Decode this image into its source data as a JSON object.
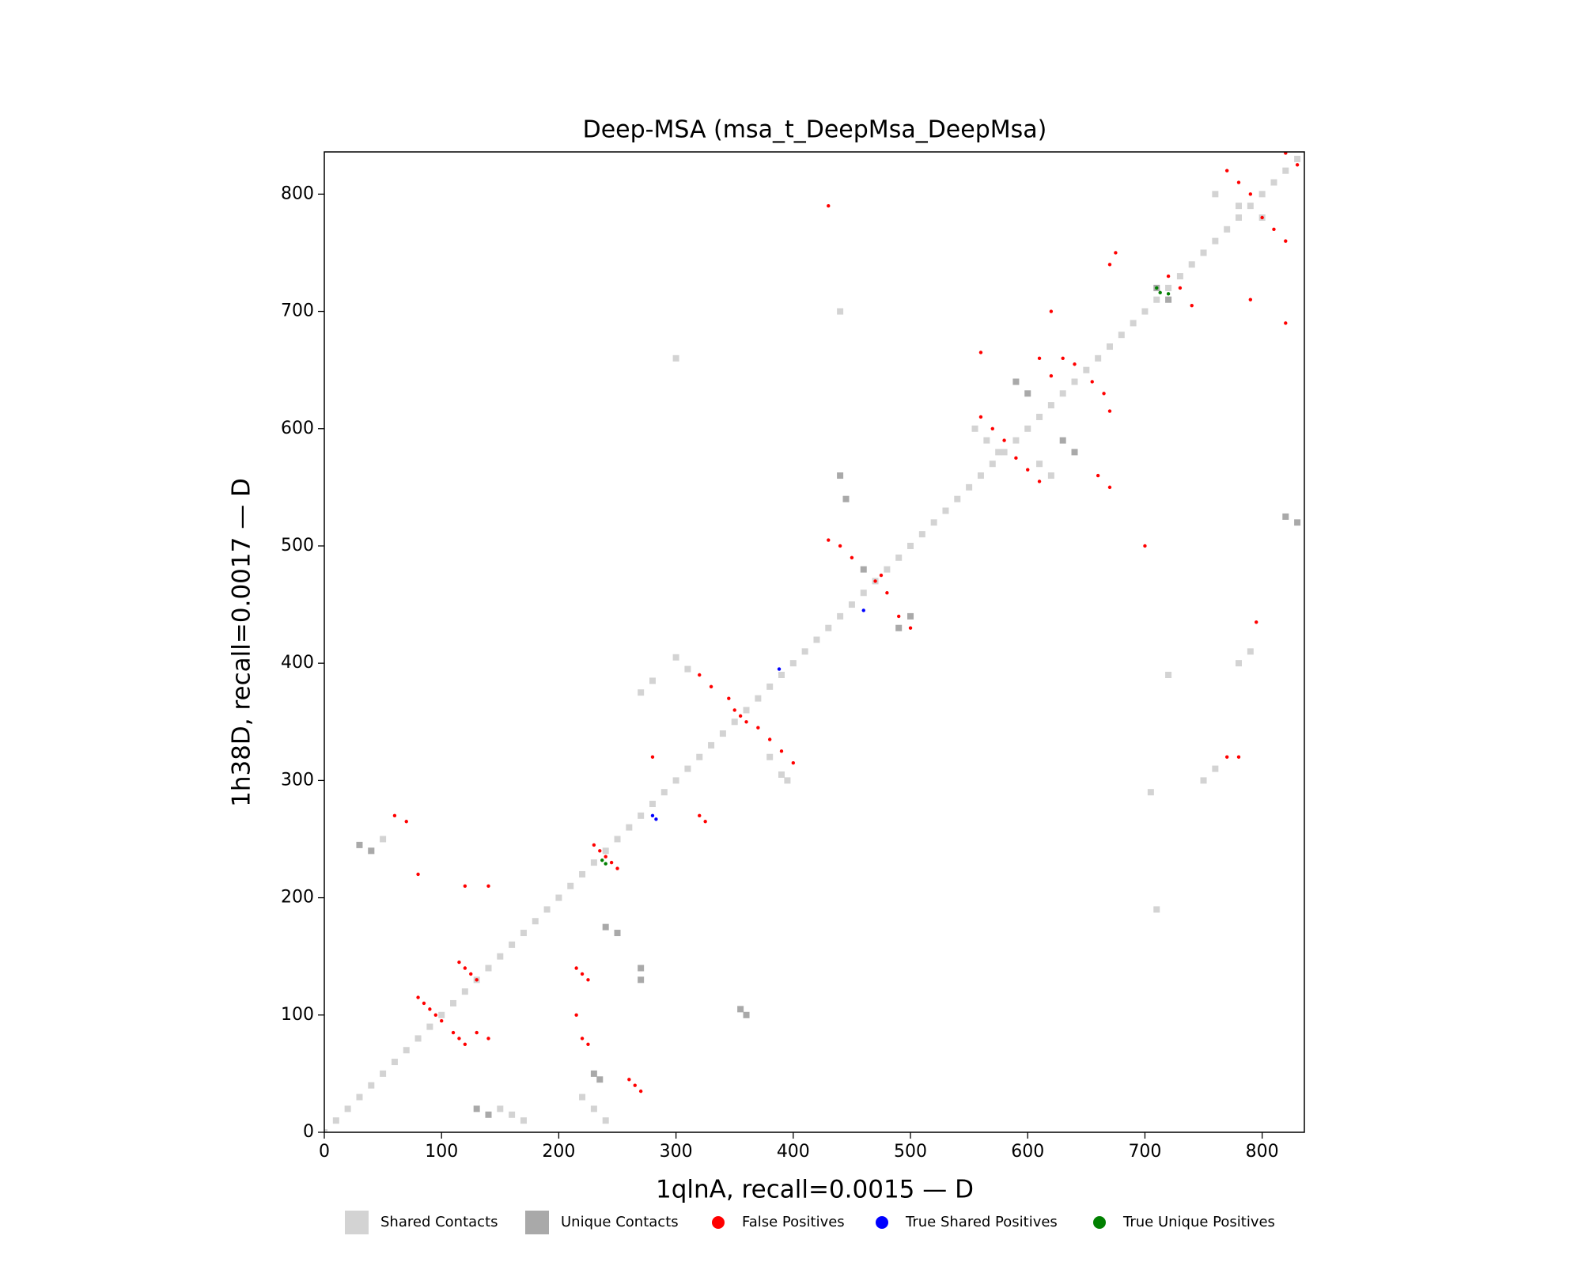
{
  "chart_data": {
    "type": "scatter",
    "title": "Deep-MSA (msa_t_DeepMsa_DeepMsa)",
    "xlabel": "1qlnA, recall=0.0015 — D",
    "ylabel": "1h38D, recall=0.0017 — D",
    "xlim": [
      0,
      836
    ],
    "ylim": [
      0,
      836
    ],
    "xticks": [
      0,
      100,
      200,
      300,
      400,
      500,
      600,
      700,
      800
    ],
    "yticks": [
      0,
      100,
      200,
      300,
      400,
      500,
      600,
      700,
      800
    ],
    "series": [
      {
        "name": "Shared Contacts",
        "color": "#d3d3d3",
        "marker": "s",
        "x": [
          0,
          10,
          20,
          30,
          40,
          50,
          60,
          70,
          80,
          90,
          100,
          110,
          120,
          130,
          140,
          150,
          160,
          170,
          180,
          190,
          200,
          210,
          220,
          230,
          240,
          250,
          260,
          270,
          280,
          290,
          300,
          310,
          320,
          330,
          340,
          350,
          360,
          370,
          380,
          390,
          400,
          410,
          420,
          430,
          440,
          450,
          460,
          470,
          480,
          490,
          500,
          510,
          520,
          530,
          540,
          550,
          560,
          570,
          580,
          590,
          600,
          610,
          620,
          630,
          640,
          650,
          660,
          670,
          680,
          690,
          700,
          710,
          720,
          730,
          740,
          750,
          760,
          770,
          780,
          790,
          800,
          810,
          820,
          830,
          270,
          280,
          300,
          310,
          380,
          390,
          395,
          150,
          160,
          170,
          555,
          565,
          575,
          610,
          620,
          300,
          440,
          760,
          780,
          800,
          780,
          790,
          720,
          760,
          750,
          705,
          710,
          40,
          50,
          220,
          230,
          240
        ],
        "y": [
          0,
          10,
          20,
          30,
          40,
          50,
          60,
          70,
          80,
          90,
          100,
          110,
          120,
          130,
          140,
          150,
          160,
          170,
          180,
          190,
          200,
          210,
          220,
          230,
          240,
          250,
          260,
          270,
          280,
          290,
          300,
          310,
          320,
          330,
          340,
          350,
          360,
          370,
          380,
          390,
          400,
          410,
          420,
          430,
          440,
          450,
          460,
          470,
          480,
          490,
          500,
          510,
          520,
          530,
          540,
          550,
          560,
          570,
          580,
          590,
          600,
          610,
          620,
          630,
          640,
          650,
          660,
          670,
          680,
          690,
          700,
          710,
          720,
          730,
          740,
          750,
          760,
          770,
          780,
          790,
          800,
          810,
          820,
          830,
          375,
          385,
          405,
          395,
          320,
          305,
          300,
          20,
          15,
          10,
          600,
          590,
          580,
          570,
          560,
          660,
          700,
          800,
          790,
          780,
          400,
          410,
          390,
          310,
          300,
          290,
          190,
          240,
          250,
          30,
          20,
          10
        ]
      },
      {
        "name": "Unique Contacts",
        "color": "#a9a9a9",
        "marker": "s",
        "x": [
          355,
          360,
          270,
          270,
          250,
          240,
          440,
          445,
          460,
          630,
          640,
          490,
          500,
          130,
          140,
          820,
          830,
          710,
          720,
          590,
          600,
          30,
          40,
          230,
          235
        ],
        "y": [
          105,
          100,
          130,
          140,
          170,
          175,
          560,
          540,
          480,
          590,
          580,
          430,
          440,
          20,
          15,
          525,
          520,
          720,
          710,
          640,
          630,
          245,
          240,
          50,
          45
        ]
      },
      {
        "name": "False Positives",
        "color": "#ff0000",
        "marker": "o",
        "x": [
          80,
          85,
          90,
          95,
          100,
          110,
          115,
          120,
          115,
          120,
          125,
          130,
          130,
          140,
          215,
          220,
          225,
          215,
          220,
          225,
          230,
          235,
          240,
          245,
          250,
          260,
          265,
          270,
          345,
          350,
          355,
          360,
          370,
          380,
          390,
          400,
          430,
          440,
          450,
          470,
          475,
          480,
          490,
          500,
          560,
          570,
          580,
          590,
          600,
          610,
          620,
          630,
          640,
          655,
          665,
          670,
          660,
          670,
          720,
          730,
          740,
          770,
          780,
          790,
          800,
          810,
          820,
          820,
          830,
          60,
          70,
          80,
          120,
          140,
          280,
          320,
          330,
          795,
          770,
          780,
          620,
          610,
          560,
          670,
          675,
          790,
          820,
          700,
          430,
          320,
          325
        ],
        "y": [
          115,
          110,
          105,
          100,
          95,
          85,
          80,
          75,
          145,
          140,
          135,
          130,
          85,
          80,
          140,
          135,
          130,
          100,
          80,
          75,
          245,
          240,
          235,
          230,
          225,
          45,
          40,
          35,
          370,
          360,
          355,
          350,
          345,
          335,
          325,
          315,
          505,
          500,
          490,
          470,
          475,
          460,
          440,
          430,
          610,
          600,
          590,
          575,
          565,
          555,
          645,
          660,
          655,
          640,
          630,
          615,
          560,
          550,
          730,
          720,
          705,
          820,
          810,
          800,
          780,
          770,
          760,
          835,
          825,
          270,
          265,
          220,
          210,
          210,
          320,
          390,
          380,
          435,
          320,
          320,
          700,
          660,
          665,
          740,
          750,
          710,
          690,
          500,
          790,
          270,
          265
        ]
      },
      {
        "name": "True Shared Positives",
        "color": "#0000ff",
        "marker": "o",
        "x": [
          280,
          283,
          388,
          460
        ],
        "y": [
          270,
          267,
          395,
          445
        ]
      },
      {
        "name": "True Unique Positives",
        "color": "#008000",
        "marker": "o",
        "x": [
          237,
          240,
          710,
          713,
          720
        ],
        "y": [
          232,
          229,
          720,
          716,
          715
        ]
      }
    ]
  }
}
